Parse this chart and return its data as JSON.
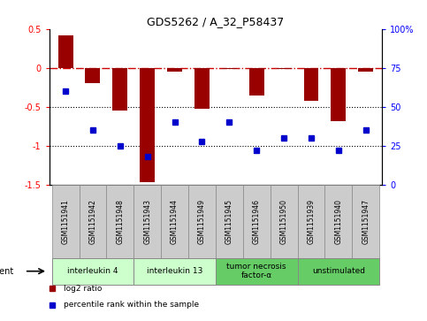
{
  "title": "GDS5262 / A_32_P58437",
  "samples": [
    "GSM1151941",
    "GSM1151942",
    "GSM1151948",
    "GSM1151943",
    "GSM1151944",
    "GSM1151949",
    "GSM1151945",
    "GSM1151946",
    "GSM1151950",
    "GSM1151939",
    "GSM1151940",
    "GSM1151947"
  ],
  "log2_ratio": [
    0.42,
    -0.2,
    -0.55,
    -1.47,
    -0.05,
    -0.52,
    -0.02,
    -0.35,
    -0.02,
    -0.42,
    -0.68,
    -0.05
  ],
  "percentile_rank": [
    60,
    35,
    25,
    18,
    40,
    28,
    40,
    22,
    30,
    30,
    22,
    35
  ],
  "ylim_left": [
    -1.5,
    0.5
  ],
  "ylim_right": [
    0,
    100
  ],
  "bar_color": "#990000",
  "dot_color": "#0000cc",
  "hline_color": "#cc0000",
  "dotted_color": "#000000",
  "groups": [
    {
      "label": "interleukin 4",
      "indices": [
        0,
        1,
        2
      ],
      "color": "#ccffcc"
    },
    {
      "label": "interleukin 13",
      "indices": [
        3,
        4,
        5
      ],
      "color": "#ccffcc"
    },
    {
      "label": "tumor necrosis\nfactor-α",
      "indices": [
        6,
        7,
        8
      ],
      "color": "#66cc66"
    },
    {
      "label": "unstimulated",
      "indices": [
        9,
        10,
        11
      ],
      "color": "#66cc66"
    }
  ],
  "legend_items": [
    {
      "label": "log2 ratio",
      "color": "#990000"
    },
    {
      "label": "percentile rank within the sample",
      "color": "#0000cc"
    }
  ],
  "agent_label": "agent",
  "bar_width": 0.55,
  "grid_bg": "#ffffff",
  "left_yticks": [
    0.5,
    0,
    -0.5,
    -1.0,
    -1.5
  ],
  "left_yticklabels": [
    "0.5",
    "0",
    "-0.5",
    "-1",
    "-1.5"
  ],
  "right_yticks": [
    100,
    75,
    50,
    25,
    0
  ],
  "right_yticklabels": [
    "100%",
    "75",
    "50",
    "25",
    "0"
  ],
  "sample_box_color": "#cccccc",
  "sample_box_edge": "#888888"
}
